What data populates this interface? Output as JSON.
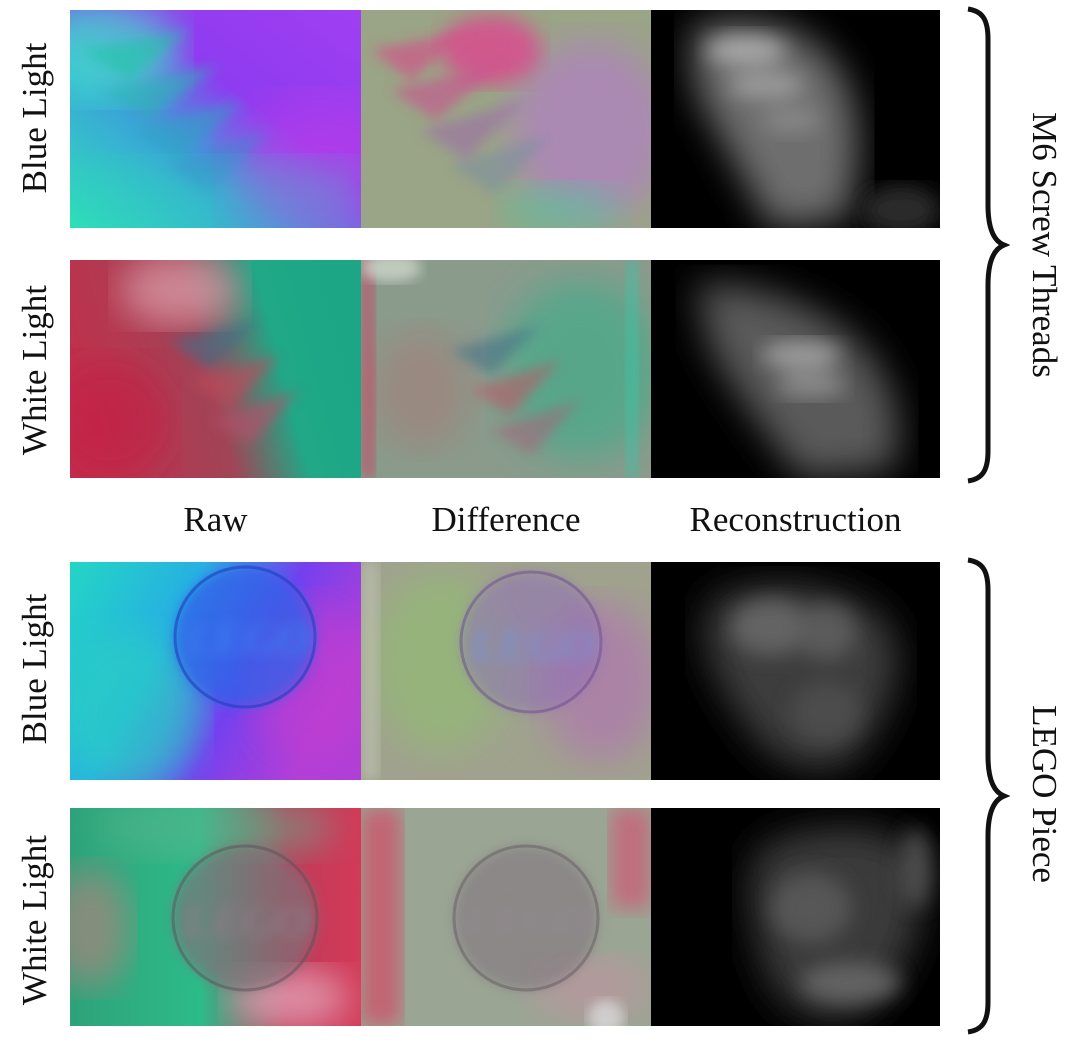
{
  "column_labels": [
    "Raw",
    "Difference",
    "Reconstruction"
  ],
  "groups": [
    {
      "label": "M6 Screw Threads",
      "rows": [
        "Blue Light",
        "White Light"
      ]
    },
    {
      "label": "LEGO Piece",
      "rows": [
        "Blue Light",
        "White Light"
      ]
    }
  ],
  "lego_logo_text": "LEGO"
}
